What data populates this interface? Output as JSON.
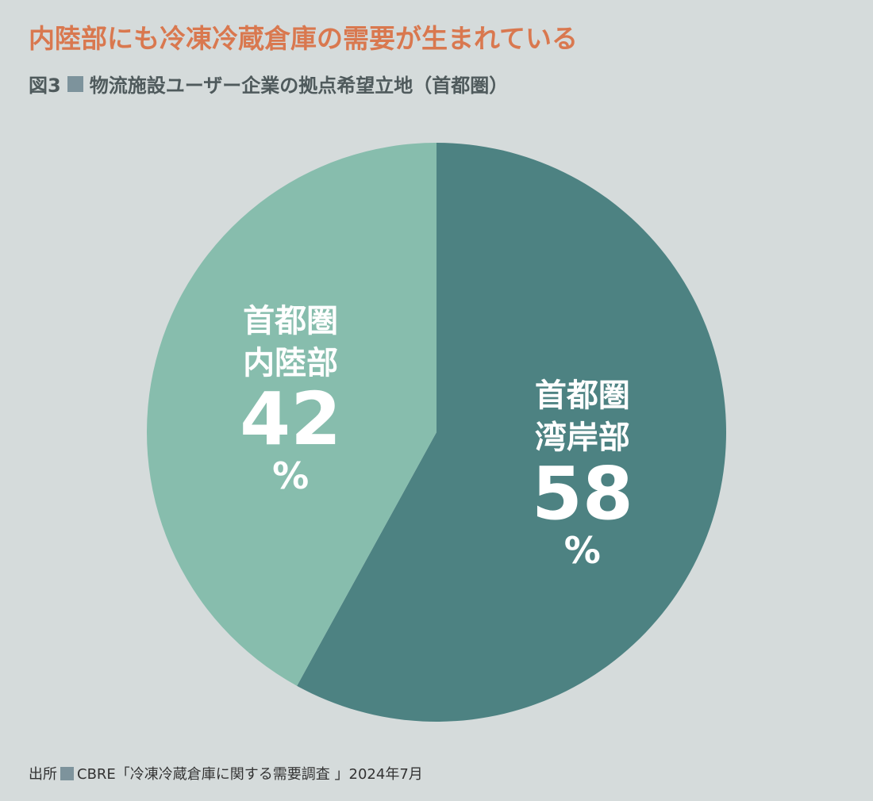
{
  "title": "内陸部にも冷凍冷蔵倉庫の需要が生まれている",
  "figure": {
    "number": "図3",
    "caption": "物流施設ユーザー企業の拠点希望立地（首都圏）",
    "marker_color": "#7d939c"
  },
  "source": {
    "label": "出所",
    "text": "CBRE「冷凍冷蔵倉庫に関する需要調査 」2024年7月"
  },
  "chart_data": {
    "type": "pie",
    "title": "物流施設ユーザー企業の拠点希望立地（首都圏）",
    "start_angle": "12 o'clock",
    "direction": "clockwise",
    "slices": [
      {
        "label_line1": "首都圏",
        "label_line2": "湾岸部",
        "value": 58,
        "unit": "%",
        "color": "#4d8282"
      },
      {
        "label_line1": "首都圏",
        "label_line2": "内陸部",
        "value": 42,
        "unit": "%",
        "color": "#87bdad"
      }
    ]
  }
}
